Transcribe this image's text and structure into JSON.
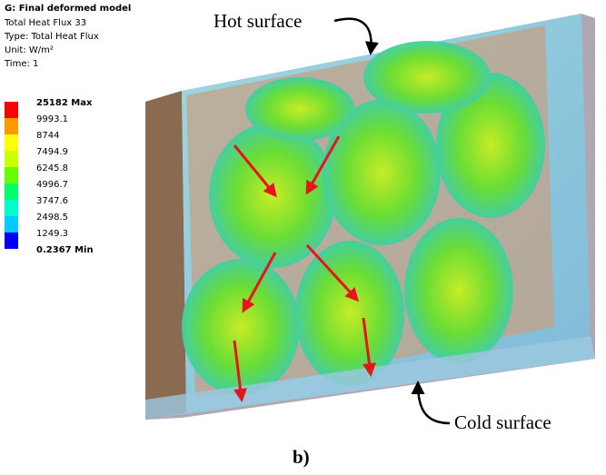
{
  "header": {
    "title": "G: Final deformed model",
    "lines": [
      "Total Heat Flux 33",
      "Type: Total Heat Flux",
      "Unit: W/m²",
      "Time: 1"
    ]
  },
  "legend": {
    "labels": [
      "25182 Max",
      "9993.1",
      "8744",
      "7494.9",
      "6245.8",
      "4996.7",
      "3747.6",
      "2498.5",
      "1249.3",
      "0.2367 Min"
    ],
    "colors": [
      "#ff0000",
      "#ff9900",
      "#ffff00",
      "#ccff00",
      "#66ff00",
      "#00ff66",
      "#00ffcc",
      "#00ccff",
      "#0000ff"
    ]
  },
  "annotations": {
    "hot": "Hot surface",
    "cold": "Cold surface"
  },
  "caption": "b)"
}
